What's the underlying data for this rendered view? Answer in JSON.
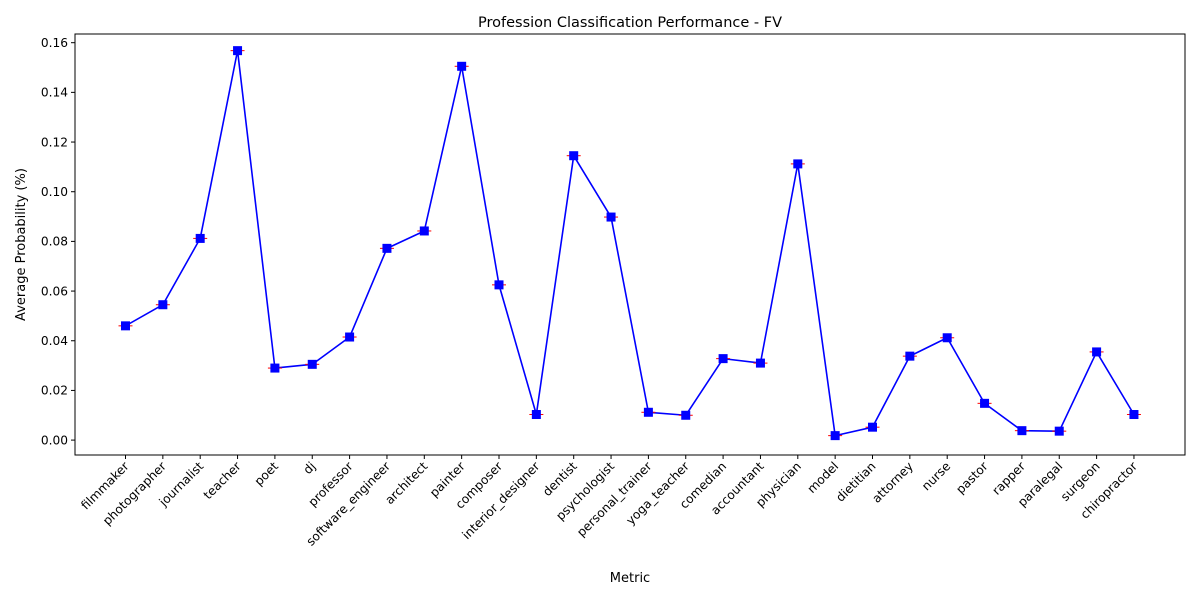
{
  "chart_data": {
    "type": "line",
    "title": "Profession Classification Performance - FV",
    "xlabel": "Metric",
    "ylabel": "Average Probability (%)",
    "ylim": [
      -0.006,
      0.1635
    ],
    "yticks": [
      0.0,
      0.02,
      0.04,
      0.06,
      0.08,
      0.1,
      0.12,
      0.14,
      0.16
    ],
    "ytick_labels": [
      "0.00",
      "0.02",
      "0.04",
      "0.06",
      "0.08",
      "0.10",
      "0.12",
      "0.14",
      "0.16"
    ],
    "grid": false,
    "categories": [
      "filmmaker",
      "photographer",
      "journalist",
      "teacher",
      "poet",
      "dj",
      "professor",
      "software_engineer",
      "architect",
      "painter",
      "composer",
      "interior_designer",
      "dentist",
      "psychologist",
      "personal_trainer",
      "yoga_teacher",
      "comedian",
      "accountant",
      "physician",
      "model",
      "dietitian",
      "attorney",
      "nurse",
      "pastor",
      "rapper",
      "paralegal",
      "surgeon",
      "chiropractor"
    ],
    "series": [
      {
        "line_color": "#0000ff",
        "marker": "square",
        "error_color": "#ff0000",
        "values": [
          0.046,
          0.0545,
          0.0812,
          0.1568,
          0.029,
          0.0305,
          0.0415,
          0.0772,
          0.0842,
          0.1505,
          0.0625,
          0.0103,
          0.1145,
          0.0898,
          0.0112,
          0.01,
          0.0328,
          0.031,
          0.1112,
          0.0018,
          0.0052,
          0.0338,
          0.0412,
          0.0148,
          0.0038,
          0.0036,
          0.0355,
          0.0103
        ]
      }
    ]
  }
}
